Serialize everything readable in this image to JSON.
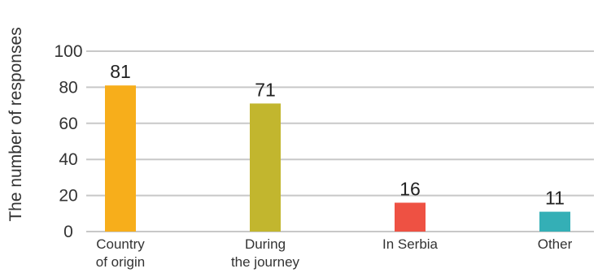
{
  "chart_data": {
    "type": "bar",
    "ylabel": "The number of responses",
    "xlabel": "",
    "categories": [
      [
        "Country",
        "of origin"
      ],
      [
        "During",
        "the journey"
      ],
      [
        "In Serbia"
      ],
      [
        "Other"
      ]
    ],
    "values": [
      81,
      71,
      16,
      11
    ],
    "bar_colors": [
      "#F7AE1B",
      "#C2B62E",
      "#EE5143",
      "#34AFB6"
    ],
    "ylim": [
      0,
      100
    ],
    "yticks": [
      0,
      20,
      40,
      60,
      80,
      100
    ],
    "grid": true,
    "gridline_color": "#c8c8c8",
    "data_labels": true
  }
}
